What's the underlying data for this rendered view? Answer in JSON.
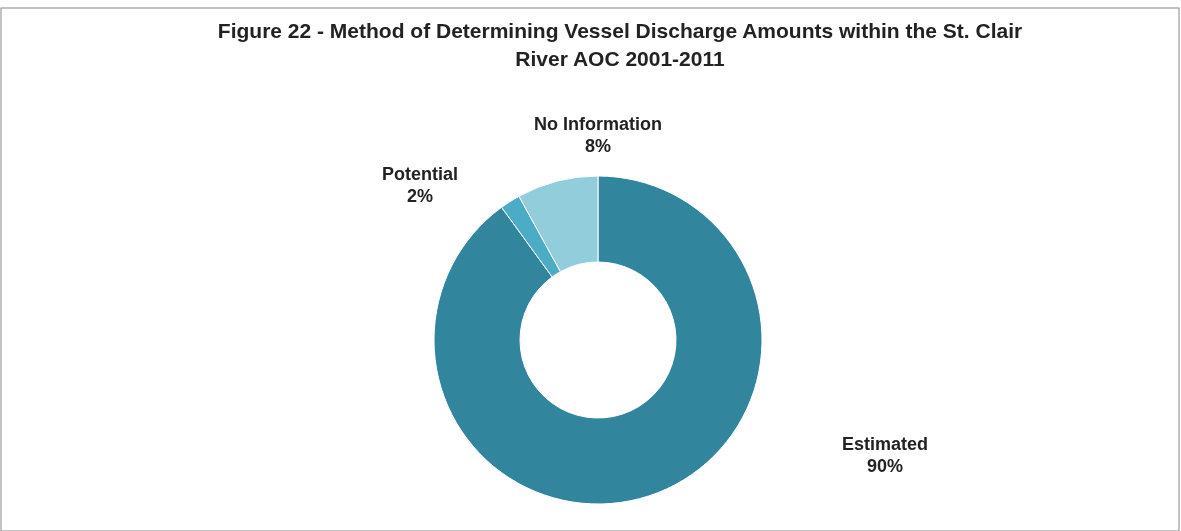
{
  "chart_data": {
    "type": "donut",
    "title": "Figure 22 - Method of Determining Vessel Discharge Amounts within the St. Clair River AOC 2001-2011",
    "categories": [
      "Estimated",
      "Potential",
      "No Information"
    ],
    "values": [
      90,
      2,
      8
    ],
    "value_labels": [
      "90%",
      "2%",
      "8%"
    ],
    "colors": [
      "#31859c",
      "#4bacc6",
      "#92cddc"
    ]
  }
}
